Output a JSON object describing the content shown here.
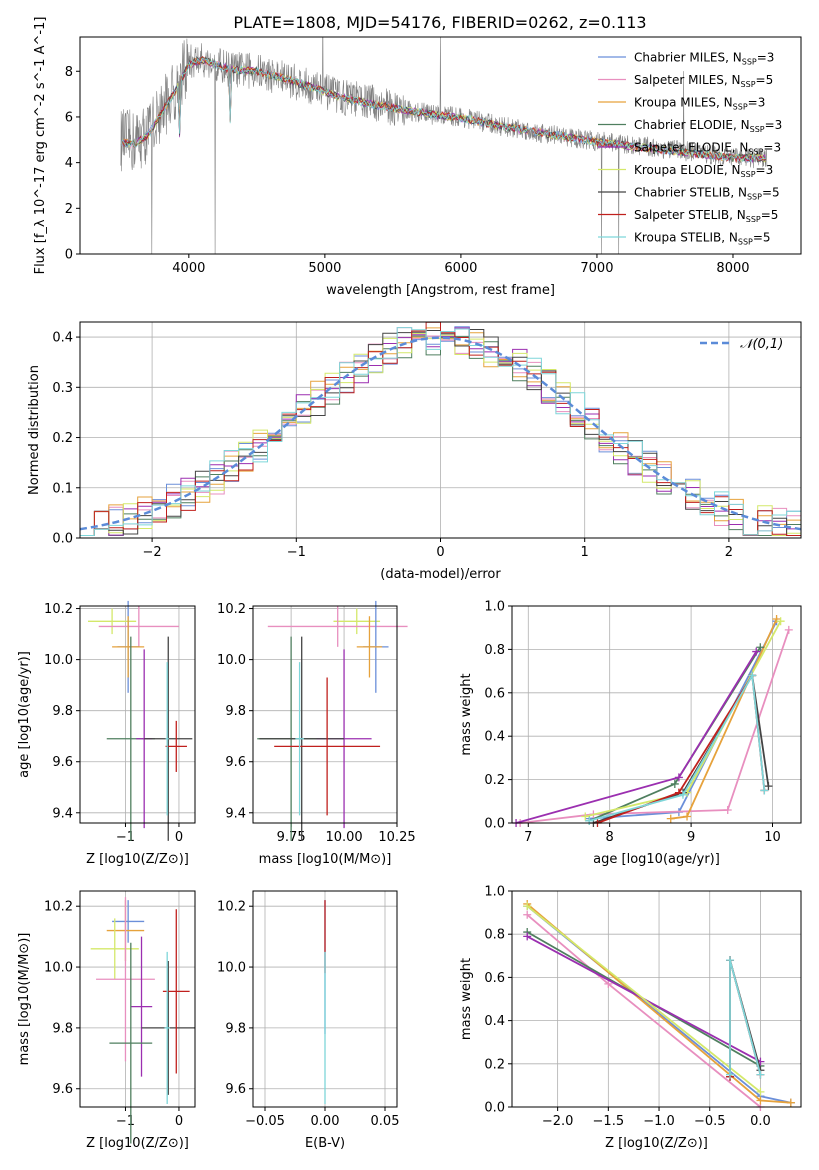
{
  "figure_title": "PLATE=1808, MJD=54176, FIBERID=0262, z=0.113",
  "models": [
    {
      "name": "Chabrier MILES",
      "nssp": "3",
      "color": "#6b8fd9"
    },
    {
      "name": "Salpeter MILES",
      "nssp": "5",
      "color": "#e88fbf"
    },
    {
      "name": "Kroupa MILES",
      "nssp": "3",
      "color": "#e6a23c"
    },
    {
      "name": "Chabrier ELODIE",
      "nssp": "3",
      "color": "#4f7f5f"
    },
    {
      "name": "Salpeter ELODIE",
      "nssp": "3",
      "color": "#9b2fb0"
    },
    {
      "name": "Kroupa ELODIE",
      "nssp": "3",
      "color": "#d4e86a"
    },
    {
      "name": "Chabrier STELIB",
      "nssp": "5",
      "color": "#444444"
    },
    {
      "name": "Salpeter STELIB",
      "nssp": "5",
      "color": "#c0201d"
    },
    {
      "name": "Kroupa STELIB",
      "nssp": "5",
      "color": "#7ed6d9"
    }
  ],
  "chart_data": [
    {
      "id": "spectrum",
      "type": "line",
      "title": "PLATE=1808, MJD=54176, FIBERID=0262, z=0.113",
      "xlabel": "wavelength [Angstrom, rest frame]",
      "ylabel": "Flux [f_λ 10^-17 erg cm^-2 s^-1 A^-1]",
      "xlim": [
        3200,
        8500
      ],
      "ylim": [
        0,
        9.5
      ],
      "xticks": [
        4000,
        5000,
        6000,
        7000,
        8000
      ],
      "yticks": [
        0,
        2,
        4,
        6,
        8
      ],
      "data_color": "#808080",
      "data_continuum": {
        "x": [
          3500,
          3600,
          3700,
          3800,
          3900,
          4000,
          4100,
          4300,
          4500,
          4700,
          4900,
          5100,
          5300,
          5500,
          5800,
          6000,
          6300,
          6600,
          6900,
          7200,
          7500,
          7800,
          8000,
          8250
        ],
        "y": [
          5.0,
          4.9,
          5.3,
          6.3,
          7.2,
          8.4,
          8.5,
          8.1,
          8.0,
          7.7,
          7.3,
          6.9,
          6.7,
          6.4,
          6.1,
          6.0,
          5.6,
          5.3,
          5.0,
          4.8,
          4.6,
          4.4,
          4.2,
          4.2
        ]
      },
      "model_continuum": {
        "x": [
          3500,
          3600,
          3700,
          3800,
          3900,
          4000,
          4100,
          4300,
          4500,
          4700,
          4900,
          5100,
          5300,
          5500,
          5800,
          6000,
          6300,
          6600,
          6900,
          7200,
          7500,
          7800,
          8000,
          8250
        ],
        "y": [
          4.9,
          4.8,
          5.2,
          6.2,
          7.1,
          8.3,
          8.5,
          8.1,
          8.0,
          7.7,
          7.3,
          6.9,
          6.6,
          6.4,
          6.1,
          5.95,
          5.6,
          5.3,
          5.0,
          4.75,
          4.55,
          4.35,
          4.2,
          4.2
        ]
      },
      "legend": "upper right",
      "grid": false
    },
    {
      "id": "residual_hist",
      "type": "histogram",
      "xlabel": "(data-model)/error",
      "ylabel": "Normed distribution",
      "xlim": [
        -2.5,
        2.5
      ],
      "ylim": [
        0,
        0.43
      ],
      "xticks": [
        -2,
        -1,
        0,
        1,
        2
      ],
      "yticks": [
        0.0,
        0.1,
        0.2,
        0.3,
        0.4
      ],
      "bin_width": 0.1,
      "reference": {
        "name": "𝒩(0,1)",
        "mu": 0,
        "sigma": 1,
        "color": "#5b8bd8",
        "style": "dashed"
      },
      "legend": "upper right",
      "grid": true
    },
    {
      "id": "age_vs_Z",
      "type": "errorbar",
      "xlabel": "Z [log10(Z/Z⊙)]",
      "ylabel": "age [log10(age/yr)]",
      "xlim": [
        -1.85,
        0.3
      ],
      "ylim": [
        9.36,
        10.21
      ],
      "xticks": [
        -1,
        0
      ],
      "xtick_labels": [
        "−1",
        "0"
      ],
      "yticks": [
        9.4,
        9.6,
        9.8,
        10.0,
        10.2
      ],
      "grid": true,
      "points": [
        {
          "model": "Kroupa ELODIE",
          "x": -1.25,
          "y": 10.15,
          "xerr": 0.45,
          "yerr": 0.05
        },
        {
          "model": "Salpeter MILES",
          "x": -0.75,
          "y": 10.13,
          "xerr": 0.75,
          "yerr": 0.08
        },
        {
          "model": "Chabrier MILES",
          "x": -0.95,
          "y": 10.05,
          "xerr": 0.2,
          "yerr": 0.18
        },
        {
          "model": "Kroupa MILES",
          "x": -0.95,
          "y": 10.05,
          "xerr": 0.3,
          "yerr": 0.12
        },
        {
          "model": "Chabrier ELODIE",
          "x": -0.9,
          "y": 9.69,
          "xerr": 0.45,
          "yerr": 0.4
        },
        {
          "model": "Salpeter ELODIE",
          "x": -0.65,
          "y": 9.69,
          "xerr": 0.15,
          "yerr": 0.35
        },
        {
          "model": "Chabrier STELIB",
          "x": -0.2,
          "y": 9.69,
          "xerr": 0.45,
          "yerr": 0.4
        },
        {
          "model": "Salpeter STELIB",
          "x": -0.05,
          "y": 9.66,
          "xerr": 0.2,
          "yerr": 0.1
        },
        {
          "model": "Kroupa STELIB",
          "x": -0.22,
          "y": 9.69,
          "xerr": 0.03,
          "yerr": 0.3
        }
      ]
    },
    {
      "id": "age_vs_mass",
      "type": "errorbar",
      "xlabel": "mass [log10(M/M⊙)]",
      "ylabel": "",
      "xlim": [
        9.57,
        10.25
      ],
      "ylim": [
        9.36,
        10.21
      ],
      "xticks": [
        9.75,
        10.0,
        10.25
      ],
      "xtick_labels": [
        "9.75",
        "10.00",
        "10.25"
      ],
      "yticks": [
        9.4,
        9.6,
        9.8,
        10.0,
        10.2
      ],
      "grid": true,
      "points": [
        {
          "model": "Kroupa ELODIE",
          "x": 10.06,
          "y": 10.15,
          "xerr": 0.11,
          "yerr": 0.05
        },
        {
          "model": "Salpeter MILES",
          "x": 9.97,
          "y": 10.13,
          "xerr": 0.33,
          "yerr": 0.08
        },
        {
          "model": "Chabrier MILES",
          "x": 10.15,
          "y": 10.05,
          "xerr": 0.06,
          "yerr": 0.18
        },
        {
          "model": "Kroupa MILES",
          "x": 10.12,
          "y": 10.05,
          "xerr": 0.06,
          "yerr": 0.12
        },
        {
          "model": "Chabrier ELODIE",
          "x": 9.75,
          "y": 9.69,
          "xerr": 0.16,
          "yerr": 0.4
        },
        {
          "model": "Salpeter ELODIE",
          "x": 10.0,
          "y": 9.69,
          "xerr": 0.13,
          "yerr": 0.35
        },
        {
          "model": "Chabrier STELIB",
          "x": 9.8,
          "y": 9.69,
          "xerr": 0.2,
          "yerr": 0.4
        },
        {
          "model": "Salpeter STELIB",
          "x": 9.92,
          "y": 9.66,
          "xerr": 0.25,
          "yerr": 0.27
        },
        {
          "model": "Kroupa STELIB",
          "x": 9.79,
          "y": 9.69,
          "xerr": 0.02,
          "yerr": 0.3
        }
      ]
    },
    {
      "id": "massweight_vs_age",
      "type": "line",
      "xlabel": "age [log10(age/yr)]",
      "ylabel": "mass weight",
      "xlim": [
        6.8,
        10.35
      ],
      "ylim": [
        0,
        1.0
      ],
      "xticks": [
        7,
        8,
        9,
        10
      ],
      "xtick_labels": [
        "7",
        "8",
        "9",
        "10"
      ],
      "yticks": [
        0.0,
        0.2,
        0.4,
        0.6,
        0.8,
        1.0
      ],
      "grid": true,
      "series": [
        {
          "model": "Chabrier MILES",
          "x": [
            7.75,
            8.85,
            10.05
          ],
          "y": [
            0.02,
            0.05,
            0.93
          ]
        },
        {
          "model": "Salpeter MILES",
          "x": [
            6.9,
            7.8,
            9.45,
            10.2
          ],
          "y": [
            0.0,
            0.04,
            0.06,
            0.89
          ]
        },
        {
          "model": "Kroupa MILES",
          "x": [
            8.75,
            8.95,
            10.05
          ],
          "y": [
            0.02,
            0.03,
            0.94
          ]
        },
        {
          "model": "Chabrier ELODIE",
          "x": [
            7.75,
            8.8,
            9.85
          ],
          "y": [
            0.01,
            0.18,
            0.81
          ]
        },
        {
          "model": "Salpeter ELODIE",
          "x": [
            6.85,
            8.85,
            9.8
          ],
          "y": [
            0.0,
            0.21,
            0.79
          ]
        },
        {
          "model": "Kroupa ELODIE",
          "x": [
            7.7,
            8.95,
            10.1
          ],
          "y": [
            0.03,
            0.14,
            0.93
          ]
        },
        {
          "model": "Chabrier STELIB",
          "x": [
            7.8,
            8.9,
            9.75,
            9.95
          ],
          "y": [
            0.0,
            0.14,
            0.68,
            0.17
          ]
        },
        {
          "model": "Salpeter STELIB",
          "x": [
            7.85,
            8.85,
            9.75,
            9.9
          ],
          "y": [
            0.0,
            0.14,
            0.68,
            0.15
          ]
        },
        {
          "model": "Kroupa STELIB",
          "x": [
            7.75,
            8.9,
            9.75,
            9.9
          ],
          "y": [
            0.01,
            0.13,
            0.68,
            0.15
          ]
        }
      ]
    },
    {
      "id": "mass_vs_Z",
      "type": "errorbar",
      "xlabel": "Z [log10(Z/Z⊙)]",
      "ylabel": "mass [log10(M/M⊙)]",
      "xlim": [
        -1.85,
        0.3
      ],
      "ylim": [
        9.54,
        10.25
      ],
      "xticks": [
        -1,
        0
      ],
      "xtick_labels": [
        "−1",
        "0"
      ],
      "yticks": [
        9.6,
        9.8,
        10.0,
        10.2
      ],
      "grid": true,
      "points": [
        {
          "model": "Chabrier MILES",
          "x": -0.95,
          "y": 10.15,
          "xerr": 0.3,
          "yerr": 0.07
        },
        {
          "model": "Kroupa MILES",
          "x": -1.0,
          "y": 10.12,
          "xerr": 0.35,
          "yerr": 0.1
        },
        {
          "model": "Kroupa ELODIE",
          "x": -1.2,
          "y": 10.06,
          "xerr": 0.45,
          "yerr": 0.1
        },
        {
          "model": "Salpeter MILES",
          "x": -1.0,
          "y": 9.96,
          "xerr": 0.55,
          "yerr": 0.27
        },
        {
          "model": "Salpeter ELODIE",
          "x": -0.7,
          "y": 9.87,
          "xerr": 0.2,
          "yerr": 0.23
        },
        {
          "model": "Chabrier ELODIE",
          "x": -0.9,
          "y": 9.75,
          "xerr": 0.4,
          "yerr": 0.33
        },
        {
          "model": "Chabrier STELIB",
          "x": -0.2,
          "y": 9.8,
          "xerr": 0.5,
          "yerr": 0.22
        },
        {
          "model": "Salpeter STELIB",
          "x": -0.05,
          "y": 9.92,
          "xerr": 0.25,
          "yerr": 0.27
        },
        {
          "model": "Kroupa STELIB",
          "x": -0.22,
          "y": 9.8,
          "xerr": 0.05,
          "yerr": 0.25
        }
      ]
    },
    {
      "id": "mass_vs_ebv",
      "type": "errorbar",
      "xlabel": "E(B-V)",
      "ylabel": "",
      "xlim": [
        -0.06,
        0.06
      ],
      "ylim": [
        9.54,
        10.25
      ],
      "xticks": [
        -0.05,
        0.0,
        0.05
      ],
      "xtick_labels": [
        "−0.05",
        "0.00",
        "0.05"
      ],
      "yticks": [
        9.6,
        9.8,
        10.0,
        10.2
      ],
      "grid": true,
      "points": [
        {
          "model": "Chabrier MILES",
          "x": 0.0,
          "y": 10.0,
          "xerr": 0.0,
          "yerr": 0.22
        },
        {
          "model": "Salpeter STELIB",
          "x": 0.0,
          "y": 10.1,
          "xerr": 0.0,
          "yerr": 0.12
        },
        {
          "model": "Kroupa STELIB",
          "x": 0.0,
          "y": 9.8,
          "xerr": 0.0,
          "yerr": 0.25
        }
      ]
    },
    {
      "id": "massweight_vs_Z",
      "type": "line",
      "xlabel": "Z [log10(Z/Z⊙)]",
      "ylabel": "mass weight",
      "xlim": [
        -2.45,
        0.4
      ],
      "ylim": [
        0,
        1.0
      ],
      "xticks": [
        -2.0,
        -1.5,
        -1.0,
        -0.5,
        0.0
      ],
      "xtick_labels": [
        "−2.0",
        "−1.5",
        "−1.0",
        "−0.5",
        "0.0"
      ],
      "yticks": [
        0.0,
        0.2,
        0.4,
        0.6,
        0.8,
        1.0
      ],
      "grid": true,
      "series": [
        {
          "model": "Chabrier MILES",
          "x": [
            -2.3,
            0.0,
            0.3
          ],
          "y": [
            0.93,
            0.05,
            0.02
          ]
        },
        {
          "model": "Salpeter MILES",
          "x": [
            -2.3,
            -1.5,
            0.0
          ],
          "y": [
            0.89,
            0.57,
            0.0
          ]
        },
        {
          "model": "Kroupa MILES",
          "x": [
            -2.3,
            0.0,
            0.3
          ],
          "y": [
            0.94,
            0.03,
            0.02
          ]
        },
        {
          "model": "Chabrier ELODIE",
          "x": [
            -2.3,
            -0.0
          ],
          "y": [
            0.81,
            0.19
          ]
        },
        {
          "model": "Salpeter ELODIE",
          "x": [
            -2.3,
            0.0
          ],
          "y": [
            0.79,
            0.21
          ]
        },
        {
          "model": "Kroupa ELODIE",
          "x": [
            -2.3,
            0.0
          ],
          "y": [
            0.93,
            0.07
          ]
        },
        {
          "model": "Chabrier STELIB",
          "x": [
            -0.3,
            -0.3,
            0.0
          ],
          "y": [
            0.14,
            0.68,
            0.17
          ]
        },
        {
          "model": "Salpeter STELIB",
          "x": [
            -0.3,
            -0.3,
            0.0
          ],
          "y": [
            0.14,
            0.68,
            0.15
          ]
        },
        {
          "model": "Kroupa STELIB",
          "x": [
            -0.3,
            -0.3,
            0.0
          ],
          "y": [
            0.15,
            0.68,
            0.15
          ]
        }
      ]
    }
  ]
}
